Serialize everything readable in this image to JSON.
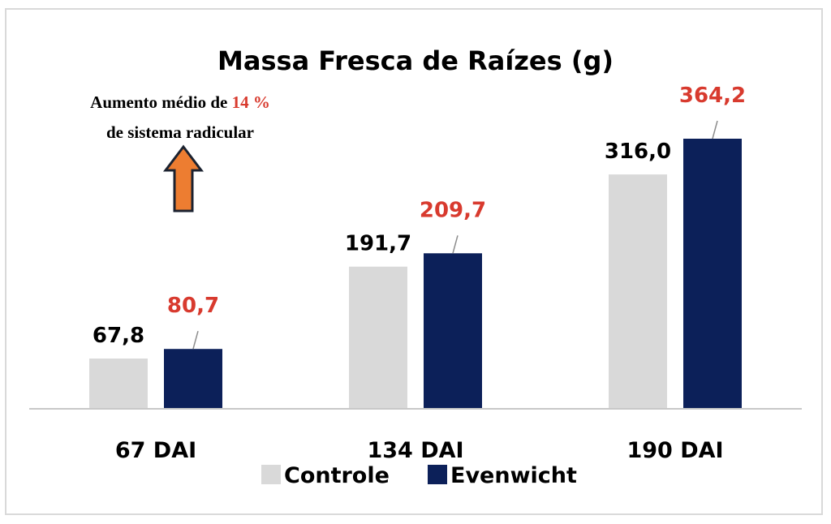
{
  "chart_data": {
    "type": "bar",
    "title": "Massa Fresca de Raízes (g)",
    "categories": [
      "67 DAI",
      "134 DAI",
      "190 DAI"
    ],
    "series": [
      {
        "name": "Controle",
        "values": [
          67.8,
          191.7,
          316.0
        ],
        "labels": [
          "67,8",
          "191,7",
          "316,0"
        ],
        "color": "#d9d9d9",
        "label_color": "#000000"
      },
      {
        "name": "Evenwicht",
        "values": [
          80.7,
          209.7,
          364.2
        ],
        "labels": [
          "80,7",
          "209,7",
          "364,2"
        ],
        "color": "#0c2059",
        "label_color": "#d83a2e"
      }
    ],
    "ylim": [
      0,
      385
    ],
    "grid": false,
    "legend_position": "bottom",
    "annotation": {
      "line1_prefix": "Aumento médio de ",
      "line1_highlight": "14 %",
      "line2": "de sistema radicular",
      "highlight_color": "#d83a2e",
      "arrow_color": "#ed7d31"
    }
  }
}
